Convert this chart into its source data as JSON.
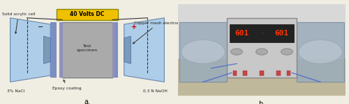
{
  "figsize": [
    5.0,
    1.5
  ],
  "dpi": 100,
  "bg_color": "#f0ede3",
  "label_a": "a.",
  "label_b": "b.",
  "label_fontsize": 7,
  "schematic": {
    "cell_color": "#aecde8",
    "cell_edge": "#6688aa",
    "specimen_color": "#aaaaaa",
    "specimen_edge": "#777777",
    "epoxy_color": "#7b8fc0",
    "electrode_color": "#6688aa",
    "voltage_color": "#f0c000",
    "voltage_edge": "#888800",
    "voltage_text": "40 Volts DC",
    "wire_color": "#333333",
    "arrow_color": "#333333",
    "text_color": "#222222",
    "plus_color": "#cc0000",
    "minus_color": "#333333"
  },
  "photo": {
    "bg_top": "#e8e8e8",
    "bg_bottom": "#c8c0b0",
    "psu_color": "#c8c8c8",
    "psu_edge": "#888888",
    "screen_color": "#111111",
    "digit_color": "#ff3300",
    "cell_color": "#b0bcc8",
    "cell_edge": "#888899"
  }
}
